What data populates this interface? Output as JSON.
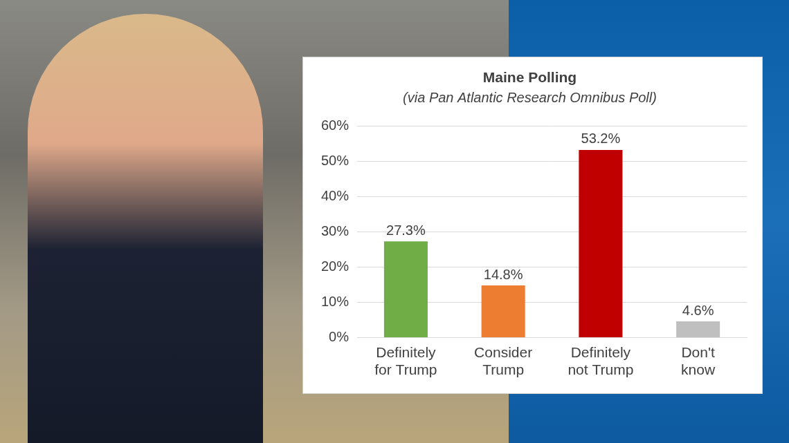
{
  "chart_data": {
    "type": "bar",
    "title": "Maine Polling",
    "subtitle": "(via Pan Atlantic Research Omnibus Poll)",
    "categories": [
      "Definitely for Trump",
      "Consider Trump",
      "Definitely not Trump",
      "Don't know"
    ],
    "values": [
      27.3,
      14.8,
      53.2,
      4.6
    ],
    "value_labels": [
      "27.3%",
      "14.8%",
      "53.2%",
      "4.6%"
    ],
    "colors": [
      "#70ad47",
      "#ed7d31",
      "#c00000",
      "#bfbfbf"
    ],
    "ylim": [
      0,
      60
    ],
    "yticks": [
      {
        "value": 0,
        "label": "0%"
      },
      {
        "value": 10,
        "label": "10%"
      },
      {
        "value": 20,
        "label": "20%"
      },
      {
        "value": 30,
        "label": "30%"
      },
      {
        "value": 40,
        "label": "40%"
      },
      {
        "value": 50,
        "label": "50%"
      },
      {
        "value": 60,
        "label": "60%"
      }
    ],
    "grid": true,
    "data_labels": true
  }
}
